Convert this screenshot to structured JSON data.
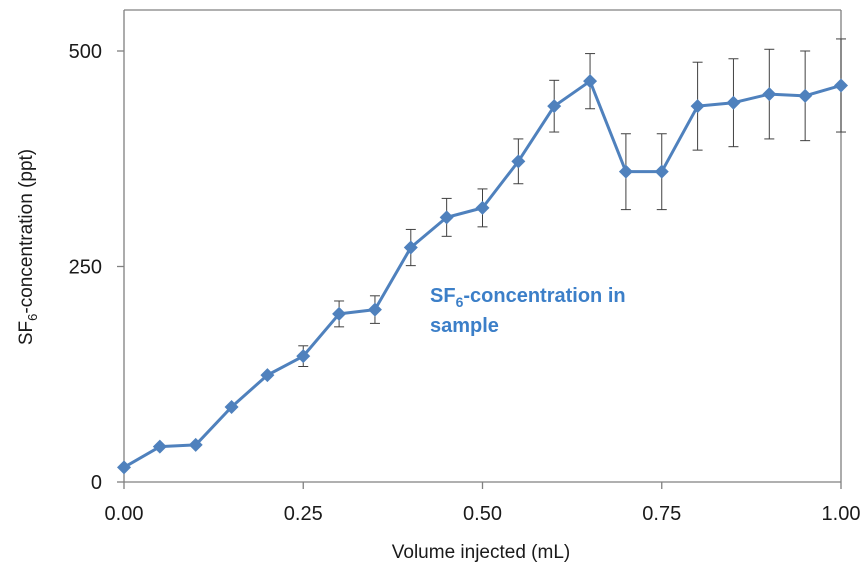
{
  "chart_data": {
    "type": "line",
    "xlabel": "Volume injected (mL)",
    "ylabel_main": "SF",
    "ylabel_sub": "6",
    "ylabel_rest": "-concentration (ppt)",
    "xlim": [
      0,
      1.0
    ],
    "ylim": [
      0,
      500
    ],
    "x_ticks": [
      0,
      0.25,
      0.5,
      0.75,
      1.0
    ],
    "x_tick_labels": [
      "0.00",
      "0.25",
      "0.50",
      "0.75",
      "1.00"
    ],
    "y_ticks": [
      0,
      250,
      500
    ],
    "y_tick_labels": [
      "0",
      "250",
      "500"
    ],
    "grid": false,
    "series": [
      {
        "name_main": "SF",
        "name_sub": "6",
        "name_rest": "-concentration in",
        "name_line2": "sample",
        "color": "#4f81bd",
        "marker": "diamond",
        "x": [
          0,
          0.05,
          0.1,
          0.15,
          0.2,
          0.25,
          0.3,
          0.35,
          0.4,
          0.45,
          0.5,
          0.55,
          0.6,
          0.65,
          0.7,
          0.75,
          0.8,
          0.85,
          0.9,
          0.95,
          1.0
        ],
        "y": [
          17,
          41,
          43,
          87,
          124,
          146,
          195,
          200,
          272,
          307,
          318,
          372,
          436,
          465,
          360,
          360,
          436,
          440,
          450,
          448,
          460
        ],
        "error": [
          0,
          0,
          0,
          0,
          0,
          12,
          15,
          16,
          21,
          22,
          22,
          26,
          30,
          32,
          44,
          44,
          51,
          51,
          52,
          52,
          54
        ]
      }
    ]
  }
}
